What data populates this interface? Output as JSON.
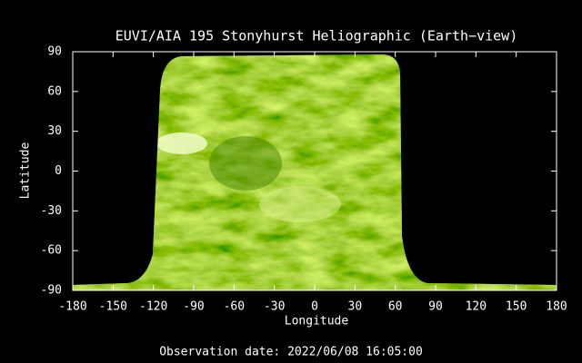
{
  "chart_data": {
    "type": "image",
    "title": "EUVI/AIA 195 Stonyhurst Heliographic (Earth−view)",
    "x_label": "Longitude",
    "y_label": "Latitude",
    "footer": "Observation date: 2022/06/08 16:05:00",
    "xlim": [
      -180,
      180
    ],
    "ylim": [
      -90,
      90
    ],
    "xticks": [
      -180,
      -150,
      -120,
      -90,
      -60,
      -30,
      0,
      30,
      60,
      90,
      120,
      150,
      180
    ],
    "yticks": [
      -90,
      -60,
      -30,
      0,
      30,
      60,
      90
    ]
  }
}
